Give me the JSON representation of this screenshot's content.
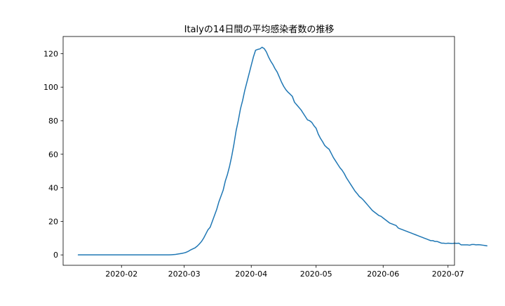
{
  "chart_data": {
    "type": "line",
    "title": "Italyの14日間の平均感染者数の推移",
    "xlabel": "",
    "ylabel": "",
    "x_start": "2020-01-12",
    "x_end": "2020-06-30",
    "x_ticks": [
      "2020-02",
      "2020-03",
      "2020-04",
      "2020-05",
      "2020-06",
      "2020-07"
    ],
    "x_tick_dates": [
      "2020-02-01",
      "2020-03-01",
      "2020-04-01",
      "2020-05-01",
      "2020-06-01",
      "2020-07-01"
    ],
    "xlim": [
      "2020-01-05",
      "2020-07-04"
    ],
    "y_ticks": [
      0,
      20,
      40,
      60,
      80,
      100,
      120
    ],
    "ylim": [
      -6.2,
      130.2
    ],
    "grid": false,
    "line_color": "#1f77b4",
    "series": [
      {
        "values": [
          0,
          0,
          0,
          0,
          0,
          0,
          0,
          0,
          0,
          0,
          0,
          0,
          0,
          0,
          0,
          0,
          0,
          0,
          0,
          0,
          0,
          0,
          0,
          0,
          0,
          0,
          0,
          0,
          0,
          0,
          0,
          0,
          0,
          0,
          0,
          0,
          0,
          0,
          0,
          0,
          0,
          0,
          0,
          0.1,
          0.2,
          0.3,
          0.5,
          0.7,
          0.9,
          1.2,
          1.6,
          2.2,
          3,
          3.6,
          4.2,
          5.2,
          6.5,
          8,
          10,
          12.5,
          15,
          16.5,
          20,
          23.5,
          27,
          31.5,
          35,
          38.5,
          44,
          48,
          53,
          59,
          66,
          74,
          80,
          87,
          92,
          98,
          103,
          108,
          113,
          118,
          122,
          122.5,
          122.8,
          123.8,
          123,
          121,
          118,
          115.5,
          113.5,
          111,
          109,
          106,
          103,
          100.5,
          98.5,
          97,
          95.8,
          94.5,
          91,
          89.5,
          88,
          86.5,
          84.5,
          82.5,
          80.5,
          80,
          79,
          77,
          75.5,
          72,
          69.5,
          67.5,
          65.2,
          64,
          63,
          60.5,
          58,
          56,
          54,
          52,
          50.5,
          48.5,
          46,
          44,
          42,
          40,
          38,
          36.5,
          34.8,
          33.8,
          32.5,
          31,
          29.5,
          28,
          26.5,
          25.5,
          24.5,
          23.5,
          23,
          22,
          21,
          20,
          19,
          18.5,
          18,
          17.5,
          16,
          15.5,
          15,
          14.5,
          14,
          13.5,
          13,
          12.5,
          12,
          11.5,
          11,
          10.5,
          10,
          9.5,
          9,
          8.5,
          8.5,
          8,
          8,
          7.5,
          7,
          7,
          6.8,
          7,
          6.9,
          6.8,
          7,
          6.9,
          7,
          6,
          6,
          6,
          6,
          5.8,
          6.2,
          6.2,
          6,
          6.1,
          6,
          5.8,
          5.6,
          5.4
        ]
      }
    ]
  }
}
